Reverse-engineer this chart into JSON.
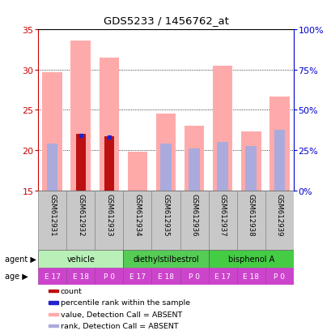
{
  "title": "GDS5233 / 1456762_at",
  "samples": [
    "GSM612931",
    "GSM612932",
    "GSM612933",
    "GSM612934",
    "GSM612935",
    "GSM612936",
    "GSM612937",
    "GSM612938",
    "GSM612939"
  ],
  "pink_bar_top": [
    29.7,
    33.6,
    31.5,
    19.8,
    24.5,
    23.0,
    30.5,
    22.3,
    26.7
  ],
  "pink_bar_bottom": [
    15,
    15,
    15,
    15,
    15,
    15,
    15,
    15,
    15
  ],
  "red_bar_top": [
    null,
    22.0,
    21.7,
    null,
    null,
    null,
    null,
    null,
    null
  ],
  "red_bar_bottom": [
    null,
    15,
    15,
    null,
    null,
    null,
    null,
    null,
    null
  ],
  "blue_dot_y": [
    null,
    21.8,
    21.6,
    null,
    null,
    null,
    null,
    null,
    null
  ],
  "lavender_bar_top": [
    20.8,
    null,
    null,
    null,
    20.8,
    20.2,
    21.0,
    20.5,
    22.5
  ],
  "lavender_bar_bottom": [
    15,
    null,
    null,
    null,
    15,
    15,
    15,
    15,
    15
  ],
  "ylim_left": [
    15,
    35
  ],
  "ylim_right": [
    0,
    100
  ],
  "yticks_left": [
    15,
    20,
    25,
    30,
    35
  ],
  "yticks_right": [
    0,
    25,
    50,
    75,
    100
  ],
  "ytick_labels_right": [
    "0%",
    "25%",
    "50%",
    "75%",
    "100%"
  ],
  "agent_groups": [
    {
      "label": "vehicle",
      "cols": [
        0,
        1,
        2
      ],
      "color": "#b8f0b8"
    },
    {
      "label": "diethylstilbestrol",
      "cols": [
        3,
        4,
        5
      ],
      "color": "#55cc55"
    },
    {
      "label": "bisphenol A",
      "cols": [
        6,
        7,
        8
      ],
      "color": "#44cc44"
    }
  ],
  "age_labels": [
    "E 17",
    "E 18",
    "P 0",
    "E 17",
    "E 18",
    "P 0",
    "E 17",
    "E 18",
    "P 0"
  ],
  "age_color": "#cc44cc",
  "header_bg": "#c8c8c8",
  "color_red": "#bb1111",
  "color_pink": "#ffaaaa",
  "color_blue": "#2222cc",
  "color_lavender": "#aaaadd",
  "left_axis_color": "#cc0000",
  "right_axis_color": "#0000cc"
}
